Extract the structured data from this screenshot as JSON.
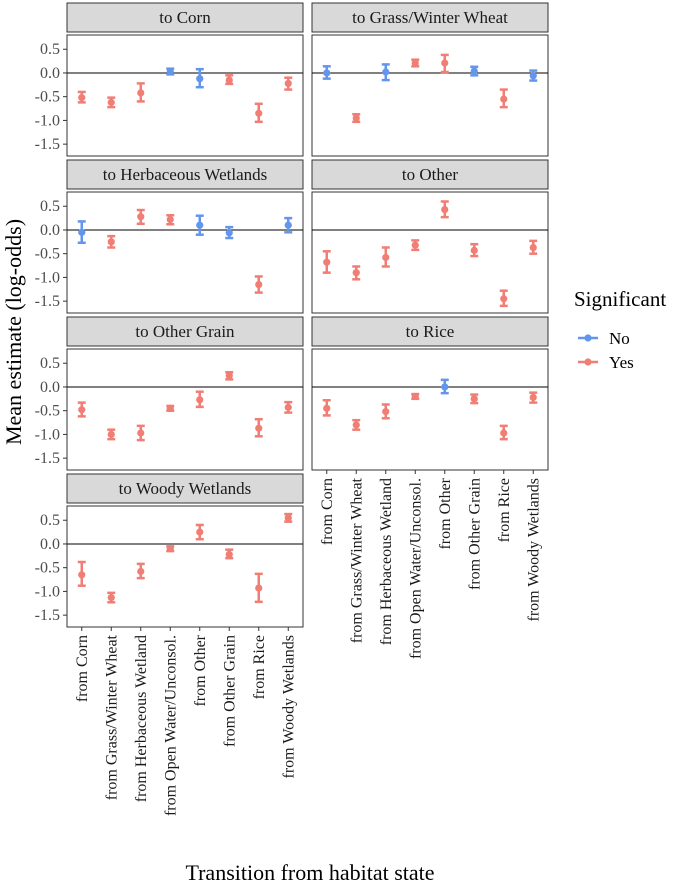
{
  "chart_data": {
    "type": "scatter",
    "subtype": "point-range facet grid",
    "xlabel": "Transition from habitat state",
    "ylabel": "Mean estimate (log-odds)",
    "ylim": [
      -1.75,
      0.8
    ],
    "yticks": [
      0.5,
      0.0,
      -0.5,
      -1.0,
      -1.5
    ],
    "ytick_labels": [
      "0.5",
      "0.0",
      "-0.5",
      "-1.0",
      "-1.5"
    ],
    "reference_line": 0,
    "categories": [
      "from Corn",
      "from Grass/Winter Wheat",
      "from Herbaceous Wetland",
      "from Open Water/Unconsol.",
      "from Other",
      "from Other Grain",
      "from Rice",
      "from Woody Wetlands"
    ],
    "legend": {
      "title": "Significant",
      "placement": "right",
      "entries": [
        {
          "label": "No",
          "color": "#6495ED"
        },
        {
          "label": "Yes",
          "color": "#F07E75"
        }
      ]
    },
    "panels": [
      {
        "title": "to Corn",
        "points": [
          {
            "x": "from Corn",
            "y": -0.52,
            "lo": -0.62,
            "hi": -0.4,
            "significant": "Yes"
          },
          {
            "x": "from Grass/Winter Wheat",
            "y": -0.62,
            "lo": -0.72,
            "hi": -0.52,
            "significant": "Yes"
          },
          {
            "x": "from Herbaceous Wetland",
            "y": -0.42,
            "lo": -0.6,
            "hi": -0.22,
            "significant": "Yes"
          },
          {
            "x": "from Open Water/Unconsol.",
            "y": 0.03,
            "lo": -0.03,
            "hi": 0.09,
            "significant": "No"
          },
          {
            "x": "from Other",
            "y": -0.12,
            "lo": -0.3,
            "hi": 0.08,
            "significant": "No"
          },
          {
            "x": "from Other Grain",
            "y": -0.15,
            "lo": -0.23,
            "hi": -0.05,
            "significant": "Yes"
          },
          {
            "x": "from Rice",
            "y": -0.85,
            "lo": -1.03,
            "hi": -0.65,
            "significant": "Yes"
          },
          {
            "x": "from Woody Wetlands",
            "y": -0.22,
            "lo": -0.35,
            "hi": -0.1,
            "significant": "Yes"
          }
        ]
      },
      {
        "title": "to Grass/Winter Wheat",
        "points": [
          {
            "x": "from Corn",
            "y": 0.0,
            "lo": -0.12,
            "hi": 0.14,
            "significant": "No"
          },
          {
            "x": "from Grass/Winter Wheat",
            "y": -0.95,
            "lo": -1.03,
            "hi": -0.87,
            "significant": "Yes"
          },
          {
            "x": "from Herbaceous Wetland",
            "y": 0.02,
            "lo": -0.15,
            "hi": 0.18,
            "significant": "No"
          },
          {
            "x": "from Open Water/Unconsol.",
            "y": 0.21,
            "lo": 0.14,
            "hi": 0.28,
            "significant": "Yes"
          },
          {
            "x": "from Other",
            "y": 0.21,
            "lo": 0.02,
            "hi": 0.38,
            "significant": "Yes"
          },
          {
            "x": "from Other Grain",
            "y": 0.04,
            "lo": -0.05,
            "hi": 0.13,
            "significant": "No"
          },
          {
            "x": "from Rice",
            "y": -0.55,
            "lo": -0.72,
            "hi": -0.35,
            "significant": "Yes"
          },
          {
            "x": "from Woody Wetlands",
            "y": -0.06,
            "lo": -0.16,
            "hi": 0.05,
            "significant": "No"
          }
        ]
      },
      {
        "title": "to Herbaceous Wetlands",
        "points": [
          {
            "x": "from Corn",
            "y": -0.05,
            "lo": -0.27,
            "hi": 0.18,
            "significant": "No"
          },
          {
            "x": "from Grass/Winter Wheat",
            "y": -0.25,
            "lo": -0.37,
            "hi": -0.13,
            "significant": "Yes"
          },
          {
            "x": "from Herbaceous Wetland",
            "y": 0.28,
            "lo": 0.13,
            "hi": 0.42,
            "significant": "Yes"
          },
          {
            "x": "from Open Water/Unconsol.",
            "y": 0.22,
            "lo": 0.12,
            "hi": 0.31,
            "significant": "Yes"
          },
          {
            "x": "from Other",
            "y": 0.1,
            "lo": -0.1,
            "hi": 0.3,
            "significant": "No"
          },
          {
            "x": "from Other Grain",
            "y": -0.06,
            "lo": -0.17,
            "hi": 0.06,
            "significant": "No"
          },
          {
            "x": "from Rice",
            "y": -1.15,
            "lo": -1.32,
            "hi": -0.98,
            "significant": "Yes"
          },
          {
            "x": "from Woody Wetlands",
            "y": 0.1,
            "lo": -0.05,
            "hi": 0.25,
            "significant": "No"
          }
        ]
      },
      {
        "title": "to Other",
        "points": [
          {
            "x": "from Corn",
            "y": -0.68,
            "lo": -0.9,
            "hi": -0.45,
            "significant": "Yes"
          },
          {
            "x": "from Grass/Winter Wheat",
            "y": -0.9,
            "lo": -1.04,
            "hi": -0.77,
            "significant": "Yes"
          },
          {
            "x": "from Herbaceous Wetland",
            "y": -0.58,
            "lo": -0.77,
            "hi": -0.37,
            "significant": "Yes"
          },
          {
            "x": "from Open Water/Unconsol.",
            "y": -0.32,
            "lo": -0.42,
            "hi": -0.22,
            "significant": "Yes"
          },
          {
            "x": "from Other",
            "y": 0.43,
            "lo": 0.27,
            "hi": 0.6,
            "significant": "Yes"
          },
          {
            "x": "from Other Grain",
            "y": -0.43,
            "lo": -0.55,
            "hi": -0.3,
            "significant": "Yes"
          },
          {
            "x": "from Rice",
            "y": -1.45,
            "lo": -1.6,
            "hi": -1.28,
            "significant": "Yes"
          },
          {
            "x": "from Woody Wetlands",
            "y": -0.37,
            "lo": -0.5,
            "hi": -0.23,
            "significant": "Yes"
          }
        ]
      },
      {
        "title": "to Other Grain",
        "points": [
          {
            "x": "from Corn",
            "y": -0.48,
            "lo": -0.62,
            "hi": -0.33,
            "significant": "Yes"
          },
          {
            "x": "from Grass/Winter Wheat",
            "y": -1.0,
            "lo": -1.1,
            "hi": -0.9,
            "significant": "Yes"
          },
          {
            "x": "from Herbaceous Wetland",
            "y": -0.97,
            "lo": -1.12,
            "hi": -0.82,
            "significant": "Yes"
          },
          {
            "x": "from Open Water/Unconsol.",
            "y": -0.45,
            "lo": -0.5,
            "hi": -0.4,
            "significant": "Yes"
          },
          {
            "x": "from Other",
            "y": -0.27,
            "lo": -0.42,
            "hi": -0.1,
            "significant": "Yes"
          },
          {
            "x": "from Other Grain",
            "y": 0.24,
            "lo": 0.16,
            "hi": 0.31,
            "significant": "Yes"
          },
          {
            "x": "from Rice",
            "y": -0.87,
            "lo": -1.04,
            "hi": -0.68,
            "significant": "Yes"
          },
          {
            "x": "from Woody Wetlands",
            "y": -0.43,
            "lo": -0.54,
            "hi": -0.32,
            "significant": "Yes"
          }
        ]
      },
      {
        "title": "to Rice",
        "points": [
          {
            "x": "from Corn",
            "y": -0.45,
            "lo": -0.6,
            "hi": -0.28,
            "significant": "Yes"
          },
          {
            "x": "from Grass/Winter Wheat",
            "y": -0.8,
            "lo": -0.9,
            "hi": -0.7,
            "significant": "Yes"
          },
          {
            "x": "from Herbaceous Wetland",
            "y": -0.52,
            "lo": -0.66,
            "hi": -0.37,
            "significant": "Yes"
          },
          {
            "x": "from Open Water/Unconsol.",
            "y": -0.2,
            "lo": -0.25,
            "hi": -0.15,
            "significant": "Yes"
          },
          {
            "x": "from Other",
            "y": 0.0,
            "lo": -0.13,
            "hi": 0.15,
            "significant": "No"
          },
          {
            "x": "from Other Grain",
            "y": -0.25,
            "lo": -0.34,
            "hi": -0.16,
            "significant": "Yes"
          },
          {
            "x": "from Rice",
            "y": -0.97,
            "lo": -1.1,
            "hi": -0.82,
            "significant": "Yes"
          },
          {
            "x": "from Woody Wetlands",
            "y": -0.22,
            "lo": -0.33,
            "hi": -0.12,
            "significant": "Yes"
          }
        ]
      },
      {
        "title": "to Woody Wetlands",
        "points": [
          {
            "x": "from Corn",
            "y": -0.65,
            "lo": -0.88,
            "hi": -0.38,
            "significant": "Yes"
          },
          {
            "x": "from Grass/Winter Wheat",
            "y": -1.13,
            "lo": -1.23,
            "hi": -1.03,
            "significant": "Yes"
          },
          {
            "x": "from Herbaceous Wetland",
            "y": -0.58,
            "lo": -0.72,
            "hi": -0.42,
            "significant": "Yes"
          },
          {
            "x": "from Open Water/Unconsol.",
            "y": -0.1,
            "lo": -0.15,
            "hi": -0.05,
            "significant": "Yes"
          },
          {
            "x": "from Other",
            "y": 0.25,
            "lo": 0.1,
            "hi": 0.4,
            "significant": "Yes"
          },
          {
            "x": "from Other Grain",
            "y": -0.22,
            "lo": -0.3,
            "hi": -0.12,
            "significant": "Yes"
          },
          {
            "x": "from Rice",
            "y": -0.93,
            "lo": -1.22,
            "hi": -0.63,
            "significant": "Yes"
          },
          {
            "x": "from Woody Wetlands",
            "y": 0.55,
            "lo": 0.47,
            "hi": 0.63,
            "significant": "Yes"
          }
        ]
      }
    ]
  }
}
